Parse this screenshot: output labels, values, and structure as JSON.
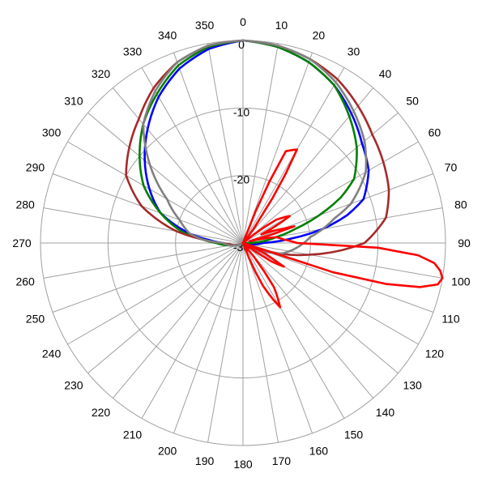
{
  "chart_data": {
    "type": "polar-line",
    "title": "",
    "angle_ticks": [
      "0",
      "10",
      "20",
      "30",
      "40",
      "50",
      "60",
      "70",
      "80",
      "90",
      "100",
      "110",
      "120",
      "130",
      "140",
      "150",
      "160",
      "170",
      "180",
      "190",
      "200",
      "210",
      "220",
      "230",
      "240",
      "250",
      "260",
      "270",
      "280",
      "290",
      "300",
      "310",
      "320",
      "330",
      "340",
      "350"
    ],
    "radial_ticks": [
      "0",
      "-10",
      "-20",
      "-30"
    ],
    "radial_range": [
      -30,
      0
    ],
    "grid": true,
    "series": [
      {
        "color": "#0000ff",
        "points": [
          [
            0,
            0
          ],
          [
            10,
            -0.5
          ],
          [
            20,
            -1.5
          ],
          [
            30,
            -3
          ],
          [
            40,
            -5
          ],
          [
            50,
            -7
          ],
          [
            60,
            -8.5
          ],
          [
            70,
            -11
          ],
          [
            75,
            -14
          ],
          [
            80,
            -18
          ],
          [
            85,
            -23
          ],
          [
            90,
            -27
          ],
          [
            95,
            -28
          ],
          [
            100,
            -29
          ],
          [
            120,
            -30
          ],
          [
            180,
            -30
          ],
          [
            240,
            -30
          ],
          [
            260,
            -28
          ],
          [
            270,
            -27
          ],
          [
            275,
            -25
          ],
          [
            280,
            -22
          ],
          [
            290,
            -17
          ],
          [
            300,
            -14
          ],
          [
            310,
            -11
          ],
          [
            320,
            -8
          ],
          [
            330,
            -5
          ],
          [
            340,
            -2.5
          ],
          [
            350,
            -0.8
          ],
          [
            360,
            0
          ]
        ]
      },
      {
        "color": "#008000",
        "points": [
          [
            0,
            0
          ],
          [
            10,
            -0.5
          ],
          [
            20,
            -1.5
          ],
          [
            30,
            -3
          ],
          [
            40,
            -5.5
          ],
          [
            50,
            -8
          ],
          [
            60,
            -11
          ],
          [
            65,
            -14
          ],
          [
            70,
            -18
          ],
          [
            75,
            -22
          ],
          [
            80,
            -25
          ],
          [
            85,
            -27
          ],
          [
            90,
            -29
          ],
          [
            100,
            -30
          ],
          [
            180,
            -30
          ],
          [
            240,
            -30
          ],
          [
            260,
            -28
          ],
          [
            270,
            -26
          ],
          [
            275,
            -24
          ],
          [
            280,
            -21
          ],
          [
            290,
            -17
          ],
          [
            300,
            -13
          ],
          [
            310,
            -10
          ],
          [
            320,
            -7
          ],
          [
            330,
            -4.5
          ],
          [
            340,
            -2
          ],
          [
            350,
            -0.5
          ],
          [
            360,
            0
          ]
        ]
      },
      {
        "color": "#a52a2a",
        "points": [
          [
            0,
            0
          ],
          [
            10,
            -0.3
          ],
          [
            20,
            -1
          ],
          [
            30,
            -2
          ],
          [
            40,
            -3.5
          ],
          [
            50,
            -5
          ],
          [
            60,
            -6
          ],
          [
            70,
            -7
          ],
          [
            80,
            -8.5
          ],
          [
            90,
            -12
          ],
          [
            100,
            -20
          ],
          [
            110,
            -27
          ],
          [
            120,
            -30
          ],
          [
            180,
            -30
          ],
          [
            240,
            -30
          ],
          [
            265,
            -28
          ],
          [
            270,
            -27
          ],
          [
            275,
            -24
          ],
          [
            280,
            -20
          ],
          [
            290,
            -14
          ],
          [
            300,
            -10
          ],
          [
            305,
            -9
          ],
          [
            310,
            -8
          ],
          [
            320,
            -6
          ],
          [
            330,
            -3.5
          ],
          [
            340,
            -1.5
          ],
          [
            350,
            -0.3
          ],
          [
            360,
            0
          ]
        ]
      },
      {
        "color": "#808080",
        "points": [
          [
            0,
            0
          ],
          [
            10,
            -0.3
          ],
          [
            20,
            -1
          ],
          [
            30,
            -2.5
          ],
          [
            40,
            -4.5
          ],
          [
            50,
            -6.5
          ],
          [
            60,
            -9
          ],
          [
            70,
            -13
          ],
          [
            75,
            -16
          ],
          [
            80,
            -18
          ],
          [
            85,
            -20
          ],
          [
            90,
            -21
          ],
          [
            95,
            -22
          ],
          [
            100,
            -23
          ],
          [
            105,
            -24
          ],
          [
            110,
            -26
          ],
          [
            120,
            -28
          ],
          [
            130,
            -30
          ],
          [
            180,
            -30
          ],
          [
            240,
            -30
          ],
          [
            260,
            -28
          ],
          [
            270,
            -27
          ],
          [
            275,
            -24
          ],
          [
            280,
            -22
          ],
          [
            290,
            -20
          ],
          [
            300,
            -17
          ],
          [
            310,
            -12
          ],
          [
            320,
            -7
          ],
          [
            330,
            -4
          ],
          [
            340,
            -1.5
          ],
          [
            350,
            -0.3
          ],
          [
            360,
            0
          ]
        ]
      },
      {
        "color": "#ff0000",
        "points": [
          [
            0,
            -30
          ],
          [
            20,
            -30
          ],
          [
            25,
            -15
          ],
          [
            30,
            -14
          ],
          [
            35,
            -26
          ],
          [
            40,
            -30
          ],
          [
            50,
            -30
          ],
          [
            55,
            -24
          ],
          [
            60,
            -22
          ],
          [
            65,
            -27
          ],
          [
            70,
            -24
          ],
          [
            72,
            -22
          ],
          [
            75,
            -29
          ],
          [
            80,
            -25
          ],
          [
            85,
            -24
          ],
          [
            90,
            -22
          ],
          [
            92,
            -10
          ],
          [
            94,
            -4
          ],
          [
            96,
            -1.5
          ],
          [
            98,
            -0.5
          ],
          [
            100,
            0
          ],
          [
            102,
            -0.5
          ],
          [
            104,
            -3
          ],
          [
            106,
            -8
          ],
          [
            108,
            -16
          ],
          [
            110,
            -30
          ],
          [
            118,
            -25
          ],
          [
            120,
            -23
          ],
          [
            123,
            -25
          ],
          [
            126,
            -30
          ],
          [
            140,
            -30
          ],
          [
            145,
            -22
          ],
          [
            150,
            -19
          ],
          [
            155,
            -23
          ],
          [
            160,
            -30
          ],
          [
            200,
            -30
          ],
          [
            360,
            -30
          ]
        ]
      }
    ]
  }
}
